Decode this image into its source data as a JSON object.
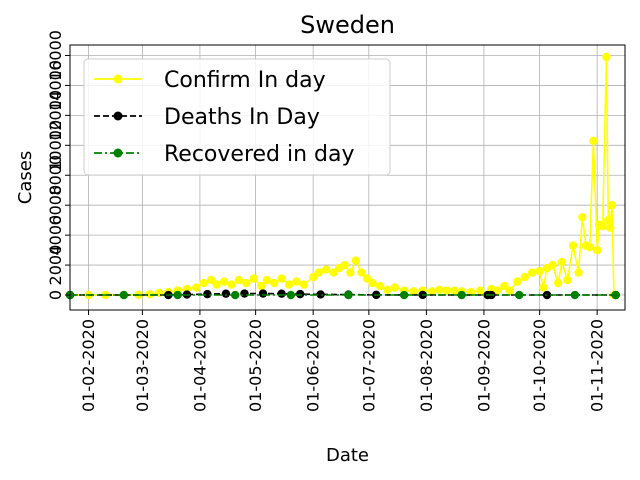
{
  "chart_data": {
    "type": "line",
    "title": "Sweden",
    "xlabel": "Date",
    "ylabel": "Cases",
    "grid": true,
    "legend_position": "upper-left",
    "x_tick_labels": [
      "01-02-2020",
      "01-03-2020",
      "01-04-2020",
      "01-05-2020",
      "01-06-2020",
      "01-07-2020",
      "01-08-2020",
      "01-09-2020",
      "01-10-2020",
      "01-11-2020"
    ],
    "y_tick_labels": [
      "0",
      "2000",
      "4000",
      "6000",
      "8000",
      "10000",
      "12000",
      "14000",
      "16000"
    ],
    "ylim": [
      -1000,
      16700
    ],
    "x_start": "2020-01-22",
    "x_end": "2020-11-16",
    "series": [
      {
        "name": "Confirm In day",
        "color": "#ffff00",
        "line_style": "solid",
        "marker": "circle",
        "points": [
          [
            "2020-01-22",
            0
          ],
          [
            "2020-02-01",
            0
          ],
          [
            "2020-02-10",
            0
          ],
          [
            "2020-02-20",
            0
          ],
          [
            "2020-02-28",
            10
          ],
          [
            "2020-03-05",
            50
          ],
          [
            "2020-03-10",
            150
          ],
          [
            "2020-03-15",
            200
          ],
          [
            "2020-03-20",
            300
          ],
          [
            "2020-03-25",
            400
          ],
          [
            "2020-03-30",
            500
          ],
          [
            "2020-04-03",
            800
          ],
          [
            "2020-04-07",
            1000
          ],
          [
            "2020-04-10",
            700
          ],
          [
            "2020-04-14",
            900
          ],
          [
            "2020-04-18",
            700
          ],
          [
            "2020-04-22",
            1000
          ],
          [
            "2020-04-26",
            800
          ],
          [
            "2020-04-30",
            1100
          ],
          [
            "2020-05-04",
            600
          ],
          [
            "2020-05-07",
            1000
          ],
          [
            "2020-05-11",
            800
          ],
          [
            "2020-05-15",
            1100
          ],
          [
            "2020-05-19",
            700
          ],
          [
            "2020-05-23",
            900
          ],
          [
            "2020-05-27",
            700
          ],
          [
            "2020-06-01",
            1200
          ],
          [
            "2020-06-04",
            1500
          ],
          [
            "2020-06-08",
            1700
          ],
          [
            "2020-06-12",
            1500
          ],
          [
            "2020-06-15",
            1800
          ],
          [
            "2020-06-18",
            2000
          ],
          [
            "2020-06-21",
            1500
          ],
          [
            "2020-06-24",
            2300
          ],
          [
            "2020-06-27",
            1500
          ],
          [
            "2020-06-30",
            1100
          ],
          [
            "2020-07-03",
            800
          ],
          [
            "2020-07-07",
            600
          ],
          [
            "2020-07-11",
            350
          ],
          [
            "2020-07-15",
            500
          ],
          [
            "2020-07-20",
            300
          ],
          [
            "2020-07-25",
            250
          ],
          [
            "2020-07-30",
            300
          ],
          [
            "2020-08-04",
            250
          ],
          [
            "2020-08-08",
            350
          ],
          [
            "2020-08-12",
            300
          ],
          [
            "2020-08-16",
            300
          ],
          [
            "2020-08-20",
            250
          ],
          [
            "2020-08-25",
            200
          ],
          [
            "2020-08-30",
            300
          ],
          [
            "2020-09-03",
            0
          ],
          [
            "2020-09-05",
            400
          ],
          [
            "2020-09-08",
            300
          ],
          [
            "2020-09-12",
            600
          ],
          [
            "2020-09-15",
            300
          ],
          [
            "2020-09-19",
            900
          ],
          [
            "2020-09-23",
            1200
          ],
          [
            "2020-09-27",
            1500
          ],
          [
            "2020-10-01",
            1600
          ],
          [
            "2020-10-03",
            500
          ],
          [
            "2020-10-05",
            1800
          ],
          [
            "2020-10-08",
            2000
          ],
          [
            "2020-10-11",
            800
          ],
          [
            "2020-10-13",
            2200
          ],
          [
            "2020-10-16",
            1000
          ],
          [
            "2020-10-19",
            3300
          ],
          [
            "2020-10-22",
            1500
          ],
          [
            "2020-10-24",
            5200
          ],
          [
            "2020-10-26",
            3300
          ],
          [
            "2020-10-28",
            3200
          ],
          [
            "2020-10-30",
            10300
          ],
          [
            "2020-11-01",
            3000
          ],
          [
            "2020-11-02",
            4700
          ],
          [
            "2020-11-04",
            4600
          ],
          [
            "2020-11-06",
            15900
          ],
          [
            "2020-11-07",
            5000
          ],
          [
            "2020-11-08",
            4500
          ],
          [
            "2020-11-09",
            6000
          ],
          [
            "2020-11-10",
            0
          ],
          [
            "2020-11-11",
            0
          ]
        ]
      },
      {
        "name": "Deaths In Day",
        "color": "#000000",
        "line_style": "dashed",
        "marker": "circle",
        "points": [
          [
            "2020-01-22",
            0
          ],
          [
            "2020-03-15",
            0
          ],
          [
            "2020-03-25",
            30
          ],
          [
            "2020-04-05",
            60
          ],
          [
            "2020-04-15",
            90
          ],
          [
            "2020-04-25",
            100
          ],
          [
            "2020-05-05",
            100
          ],
          [
            "2020-05-15",
            90
          ],
          [
            "2020-05-25",
            60
          ],
          [
            "2020-06-05",
            40
          ],
          [
            "2020-06-20",
            30
          ],
          [
            "2020-07-05",
            10
          ],
          [
            "2020-07-30",
            5
          ],
          [
            "2020-09-03",
            0
          ],
          [
            "2020-09-05",
            0
          ],
          [
            "2020-10-05",
            0
          ],
          [
            "2020-11-11",
            0
          ]
        ]
      },
      {
        "name": "Recovered in day",
        "color": "#008000",
        "line_style": "dashdot",
        "marker": "circle",
        "points": [
          [
            "2020-01-22",
            0
          ],
          [
            "2020-02-20",
            0
          ],
          [
            "2020-03-20",
            0
          ],
          [
            "2020-04-20",
            0
          ],
          [
            "2020-05-20",
            0
          ],
          [
            "2020-06-20",
            0
          ],
          [
            "2020-07-20",
            0
          ],
          [
            "2020-08-20",
            0
          ],
          [
            "2020-09-20",
            0
          ],
          [
            "2020-10-20",
            0
          ],
          [
            "2020-11-11",
            0
          ]
        ]
      }
    ]
  }
}
